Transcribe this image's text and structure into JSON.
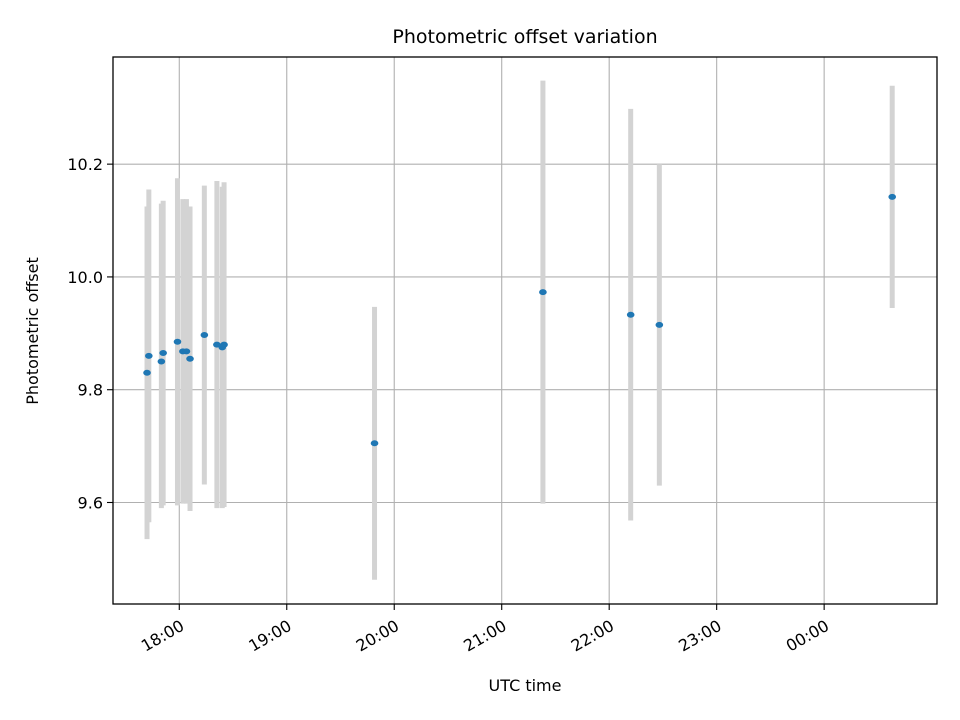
{
  "chart_data": {
    "type": "scatter",
    "title": "Photometric offset variation",
    "xlabel": "UTC time",
    "ylabel": "Photometric offset",
    "x_axis_type": "time",
    "xlim": [
      "17:23",
      "01:03"
    ],
    "ylim": [
      9.42,
      10.39
    ],
    "grid": true,
    "x_ticks": [
      {
        "value": "18:00",
        "label": "18:00"
      },
      {
        "value": "19:00",
        "label": "19:00"
      },
      {
        "value": "20:00",
        "label": "20:00"
      },
      {
        "value": "21:00",
        "label": "21:00"
      },
      {
        "value": "22:00",
        "label": "22:00"
      },
      {
        "value": "23:00",
        "label": "23:00"
      },
      {
        "value": "00:00",
        "label": "00:00"
      }
    ],
    "y_ticks": [
      {
        "value": 9.6,
        "label": "9.6"
      },
      {
        "value": 9.8,
        "label": "9.8"
      },
      {
        "value": 10.0,
        "label": "10.0"
      },
      {
        "value": 10.2,
        "label": "10.2"
      }
    ],
    "colors": {
      "marker": "#1f77b4",
      "errorbar": "#d3d3d3",
      "grid": "#b0b0b0"
    },
    "points": [
      {
        "x": "17:42",
        "y": 9.83,
        "ylow": 9.535,
        "yhigh": 10.125
      },
      {
        "x": "17:43",
        "y": 9.86,
        "ylow": 9.565,
        "yhigh": 10.155
      },
      {
        "x": "17:50",
        "y": 9.85,
        "ylow": 9.59,
        "yhigh": 10.13
      },
      {
        "x": "17:51",
        "y": 9.865,
        "ylow": 9.595,
        "yhigh": 10.135
      },
      {
        "x": "17:59",
        "y": 9.885,
        "ylow": 9.595,
        "yhigh": 10.175
      },
      {
        "x": "18:02",
        "y": 9.868,
        "ylow": 9.598,
        "yhigh": 10.138
      },
      {
        "x": "18:04",
        "y": 9.868,
        "ylow": 9.598,
        "yhigh": 10.138
      },
      {
        "x": "18:06",
        "y": 9.855,
        "ylow": 9.585,
        "yhigh": 10.125
      },
      {
        "x": "18:14",
        "y": 9.897,
        "ylow": 9.632,
        "yhigh": 10.162
      },
      {
        "x": "18:21",
        "y": 9.88,
        "ylow": 9.59,
        "yhigh": 10.17
      },
      {
        "x": "18:24",
        "y": 9.875,
        "ylow": 9.59,
        "yhigh": 10.16
      },
      {
        "x": "18:25",
        "y": 9.88,
        "ylow": 9.592,
        "yhigh": 10.168
      },
      {
        "x": "19:49",
        "y": 9.705,
        "ylow": 9.463,
        "yhigh": 9.947
      },
      {
        "x": "21:23",
        "y": 9.973,
        "ylow": 9.598,
        "yhigh": 10.348
      },
      {
        "x": "22:12",
        "y": 9.933,
        "ylow": 9.568,
        "yhigh": 10.298
      },
      {
        "x": "22:28",
        "y": 9.915,
        "ylow": 9.63,
        "yhigh": 10.2
      },
      {
        "x": "00:38",
        "y": 10.142,
        "ylow": 9.945,
        "yhigh": 10.339
      }
    ]
  }
}
